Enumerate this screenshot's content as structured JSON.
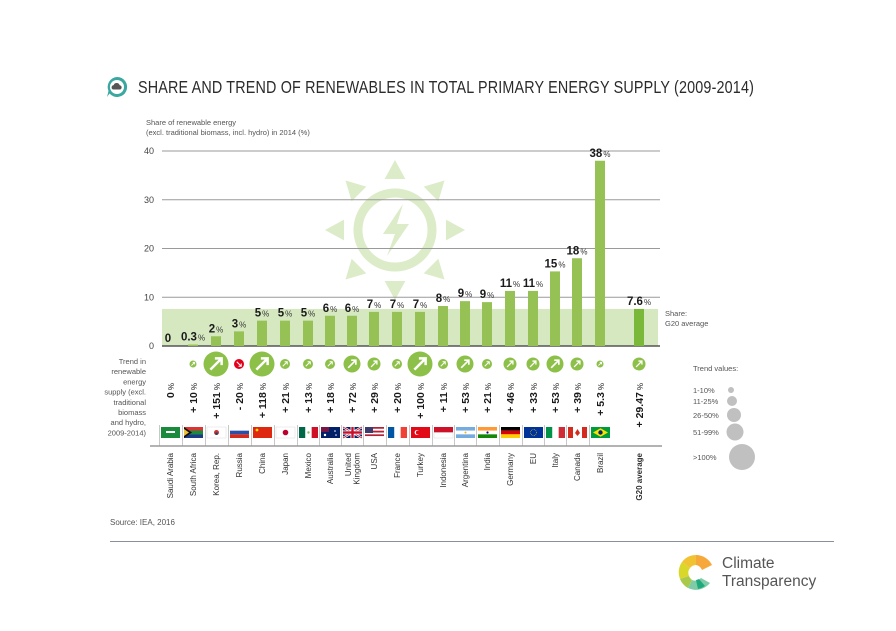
{
  "header": {
    "title": "SHARE AND TREND OF RENEWABLES IN TOTAL PRIMARY ENERGY SUPPLY (2009-2014)",
    "icon": "cloud-speech-bubble-icon"
  },
  "chart_data": {
    "type": "bar",
    "title": "SHARE AND TREND OF RENEWABLES IN TOTAL PRIMARY ENERGY SUPPLY (2009-2014)",
    "ylabel": "Share of renewable energy (excl. traditional biomass, incl. hydro) in 2014 (%)",
    "ylabel_lines": [
      "Share of renewable energy",
      "(excl. traditional biomass, incl. hydro) in 2014 (%)"
    ],
    "ylim": [
      0,
      40
    ],
    "yticks": [
      0,
      10,
      20,
      30,
      40
    ],
    "grid": true,
    "categories": [
      "Saudi Arabia",
      "South Africa",
      "Korea, Rep.",
      "Russia",
      "China",
      "Japan",
      "Mexico",
      "Australia",
      "United Kingdom",
      "USA",
      "France",
      "Turkey",
      "Indonesia",
      "Argentina",
      "India",
      "Germany",
      "EU",
      "Italy",
      "Canada",
      "Brazil",
      "G20 average"
    ],
    "category_lines": [
      [
        "Saudi Arabia"
      ],
      [
        "South Africa"
      ],
      [
        "Korea, Rep."
      ],
      [
        "Russia"
      ],
      [
        "China"
      ],
      [
        "Japan"
      ],
      [
        "Mexico"
      ],
      [
        "Australia"
      ],
      [
        "United",
        "Kingdom"
      ],
      [
        "USA"
      ],
      [
        "France"
      ],
      [
        "Turkey"
      ],
      [
        "Indonesia"
      ],
      [
        "Argentina"
      ],
      [
        "India"
      ],
      [
        "Germany"
      ],
      [
        "EU"
      ],
      [
        "Italy"
      ],
      [
        "Canada"
      ],
      [
        "Brazil"
      ],
      [
        "G20 average"
      ]
    ],
    "values": [
      0,
      0.3,
      2,
      3,
      5.2,
      5.2,
      5.2,
      6.2,
      6.2,
      7,
      7,
      7,
      8.2,
      9.2,
      9,
      11.3,
      11.3,
      15.3,
      18,
      38,
      7.6
    ],
    "value_labels": [
      "0",
      "0.3",
      "2",
      "3",
      "5",
      "5",
      "5",
      "6",
      "6",
      "7",
      "7",
      "7",
      "8",
      "9",
      "9",
      "11",
      "11",
      "15",
      "18",
      "38",
      "7.6"
    ],
    "value_label_suffix": "%",
    "g20_average_share": 7.6,
    "g20_band_label": [
      "Share:",
      "G20 average"
    ],
    "trend_title_lines": [
      "Trend in",
      "renewable",
      "energy",
      "supply (excl.",
      "traditional",
      "biomass",
      "and hydro,",
      "2009-2014)"
    ],
    "trend_values": [
      "0",
      "+ 10",
      "+ 151",
      "- 20",
      "+ 118",
      "+ 21",
      "+ 13",
      "+ 18",
      "+ 72",
      "+ 29",
      "+ 20",
      "+ 100",
      "+ 11",
      "+ 53",
      "+ 21",
      "+ 46",
      "+ 33",
      "+ 53",
      "+ 39",
      "+ 5.3",
      "+ 29.47"
    ],
    "trend_numeric": [
      0,
      10,
      151,
      -20,
      118,
      21,
      13,
      18,
      72,
      29,
      20,
      100,
      11,
      53,
      21,
      46,
      33,
      53,
      39,
      5.3,
      29.47
    ],
    "trend_legend": {
      "title": "Trend values:",
      "classes": [
        "1-10%",
        "11-25%",
        "26-50%",
        "51-99%",
        ">100%"
      ]
    },
    "colors": {
      "bar": "#95c155",
      "bar_g20": "#7ab83a",
      "band": "#d6e8c0",
      "trend_up": "#8cc048",
      "trend_down": "#e2001a",
      "legend_circle": "#c0c0c0",
      "watermark": "#dcebc8"
    },
    "flags": [
      "saudi-arabia-flag",
      "south-africa-flag",
      "korea-flag",
      "russia-flag",
      "china-flag",
      "japan-flag",
      "mexico-flag",
      "australia-flag",
      "uk-flag",
      "usa-flag",
      "france-flag",
      "turkey-flag",
      "indonesia-flag",
      "argentina-flag",
      "india-flag",
      "germany-flag",
      "eu-flag",
      "italy-flag",
      "canada-flag",
      "brazil-flag"
    ]
  },
  "footer": {
    "source": "Source: IEA, 2016",
    "brand_line1": "Climate",
    "brand_line2": "Transparency"
  }
}
